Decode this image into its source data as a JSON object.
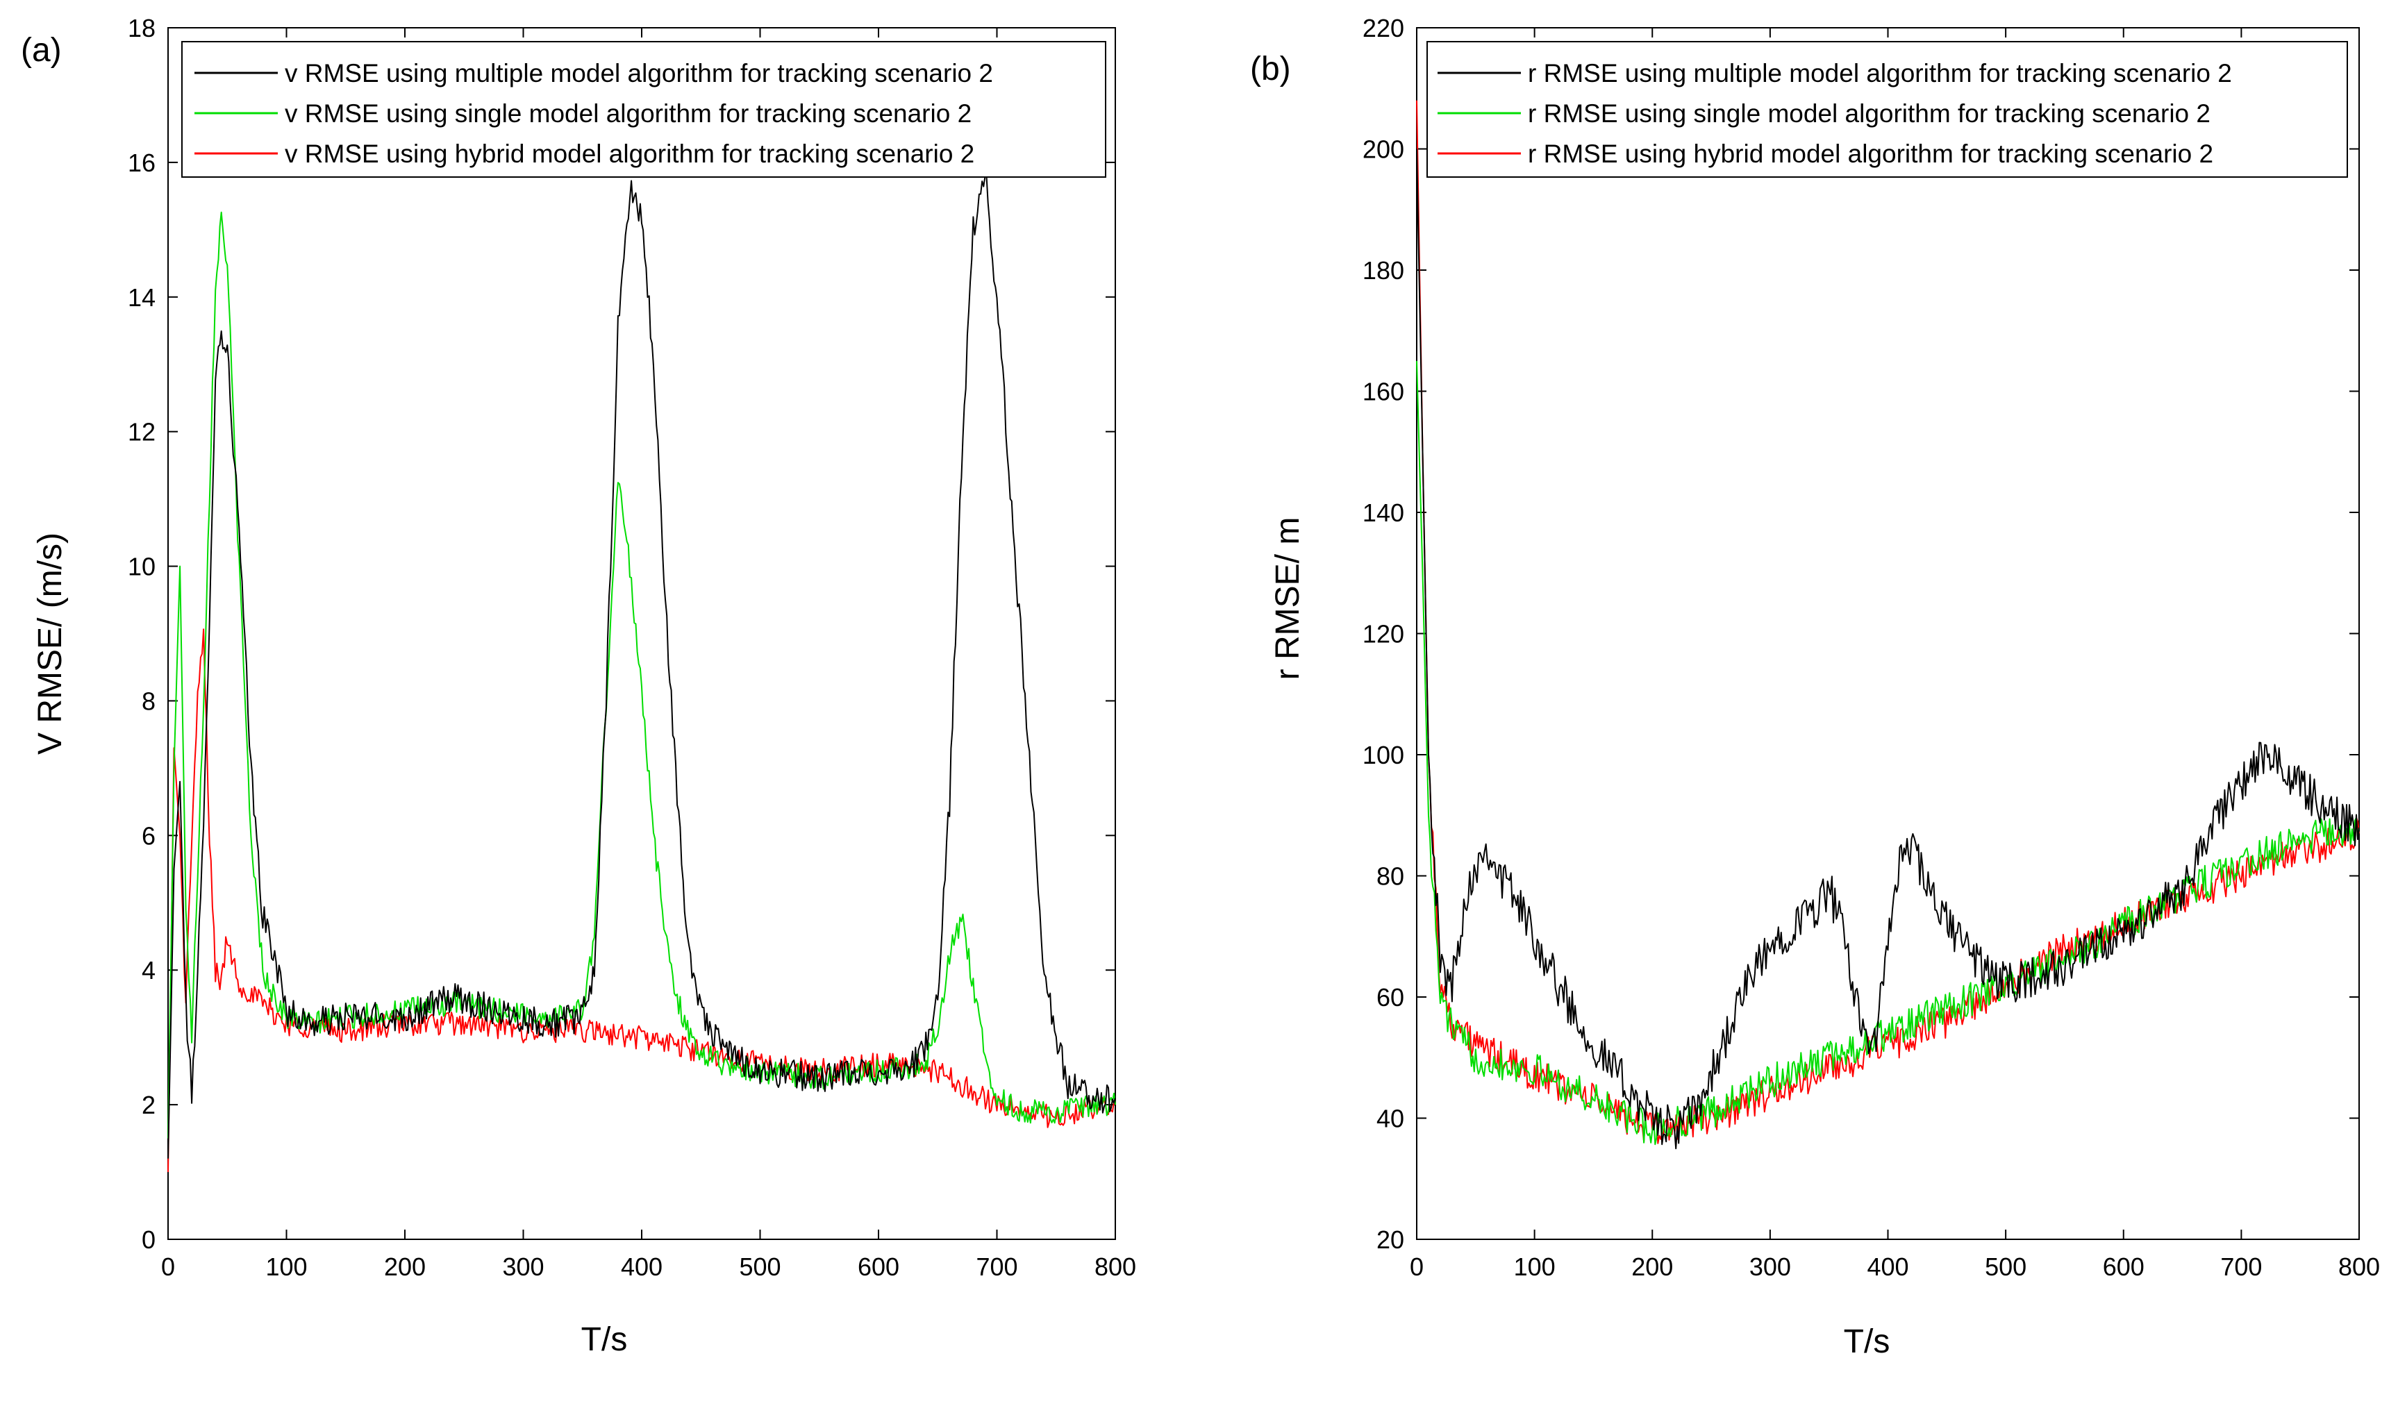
{
  "chart_data": [
    {
      "panel_label": "(a)",
      "type": "line",
      "xlabel": "T/s",
      "ylabel": "V RMSE/ (m/s)",
      "xlim": [
        0,
        800
      ],
      "ylim": [
        0,
        18
      ],
      "xticks": [
        "0",
        "100",
        "200",
        "300",
        "400",
        "500",
        "600",
        "700",
        "800"
      ],
      "yticks": [
        "0",
        "2",
        "4",
        "6",
        "8",
        "10",
        "12",
        "14",
        "16",
        "18"
      ],
      "legend_position": "top",
      "series": [
        {
          "name": "v RMSE using multiple model algorithm for tracking  scenario 2",
          "color": "#000000",
          "x": [
            0,
            5,
            10,
            15,
            20,
            30,
            40,
            45,
            50,
            60,
            70,
            80,
            90,
            100,
            120,
            150,
            200,
            240,
            280,
            320,
            350,
            360,
            370,
            380,
            390,
            400,
            410,
            420,
            430,
            440,
            450,
            460,
            480,
            500,
            550,
            600,
            630,
            640,
            650,
            660,
            670,
            680,
            690,
            700,
            710,
            720,
            730,
            740,
            750,
            760,
            780,
            800
          ],
          "y": [
            1.2,
            5.5,
            6.8,
            3.5,
            2.1,
            6.0,
            12.8,
            13.5,
            13.2,
            10.5,
            7.0,
            4.8,
            4.2,
            3.4,
            3.2,
            3.3,
            3.3,
            3.6,
            3.4,
            3.2,
            3.3,
            4.0,
            8.0,
            13.5,
            15.6,
            15.2,
            13.0,
            9.5,
            6.5,
            4.2,
            3.5,
            3.0,
            2.7,
            2.5,
            2.4,
            2.5,
            2.6,
            2.9,
            3.5,
            6.5,
            11.5,
            15.0,
            15.8,
            14.0,
            11.5,
            9.0,
            6.5,
            4.0,
            3.0,
            2.3,
            2.1,
            2.1
          ]
        },
        {
          "name": "v RMSE using single model algorithm for tracking  scenario 2",
          "color": "#00dd00",
          "x": [
            0,
            5,
            10,
            15,
            20,
            30,
            40,
            45,
            50,
            60,
            70,
            80,
            90,
            100,
            120,
            150,
            200,
            240,
            280,
            320,
            350,
            360,
            370,
            380,
            390,
            400,
            410,
            420,
            430,
            440,
            450,
            470,
            500,
            550,
            600,
            640,
            650,
            660,
            670,
            680,
            690,
            700,
            720,
            750,
            800
          ],
          "y": [
            1.5,
            7.0,
            10.0,
            5.0,
            3.0,
            8.0,
            14.2,
            15.2,
            14.5,
            10.0,
            6.0,
            4.0,
            3.6,
            3.3,
            3.2,
            3.3,
            3.4,
            3.5,
            3.4,
            3.3,
            3.4,
            4.5,
            8.0,
            11.3,
            10.0,
            8.2,
            6.0,
            4.5,
            3.6,
            3.0,
            2.8,
            2.6,
            2.5,
            2.4,
            2.5,
            2.6,
            3.2,
            4.2,
            4.8,
            3.8,
            2.7,
            2.1,
            1.9,
            1.9,
            2.0
          ]
        },
        {
          "name": "v RMSE using hybrid model algorithm for tracking  scenario 2",
          "color": "#ff0000",
          "x": [
            0,
            5,
            10,
            15,
            20,
            25,
            30,
            35,
            40,
            45,
            50,
            60,
            80,
            100,
            150,
            200,
            250,
            300,
            350,
            400,
            450,
            500,
            550,
            600,
            630,
            660,
            700,
            750,
            800
          ],
          "y": [
            1.0,
            7.3,
            6.0,
            3.5,
            6.0,
            8.0,
            9.0,
            6.0,
            4.0,
            3.8,
            4.5,
            3.8,
            3.5,
            3.2,
            3.1,
            3.2,
            3.2,
            3.1,
            3.1,
            3.0,
            2.8,
            2.6,
            2.5,
            2.6,
            2.6,
            2.4,
            2.0,
            1.8,
            2.0
          ]
        }
      ]
    },
    {
      "panel_label": "(b)",
      "type": "line",
      "xlabel": "T/s",
      "ylabel": "r RMSE/ m",
      "xlim": [
        0,
        800
      ],
      "ylim": [
        20,
        220
      ],
      "xticks": [
        "0",
        "100",
        "200",
        "300",
        "400",
        "500",
        "600",
        "700",
        "800"
      ],
      "yticks": [
        "20",
        "40",
        "60",
        "80",
        "100",
        "120",
        "140",
        "160",
        "180",
        "200",
        "220"
      ],
      "legend_position": "top",
      "series": [
        {
          "name": "r RMSE using multiple model algorithm for tracking  scenario 2",
          "color": "#000000",
          "x": [
            0,
            5,
            10,
            20,
            30,
            40,
            50,
            60,
            70,
            80,
            100,
            120,
            150,
            180,
            200,
            220,
            240,
            260,
            280,
            300,
            320,
            340,
            350,
            360,
            370,
            380,
            390,
            400,
            410,
            420,
            440,
            460,
            480,
            500,
            550,
            600,
            650,
            680,
            700,
            720,
            750,
            780,
            800
          ],
          "y": [
            200,
            150,
            100,
            65,
            62,
            75,
            82,
            85,
            80,
            78,
            70,
            62,
            52,
            45,
            40,
            38,
            42,
            52,
            62,
            68,
            72,
            75,
            78,
            72,
            62,
            55,
            52,
            70,
            82,
            85,
            75,
            70,
            65,
            62,
            65,
            70,
            78,
            90,
            95,
            100,
            95,
            90,
            88
          ]
        },
        {
          "name": "r RMSE using single model algorithm for tracking  scenario 2",
          "color": "#00dd00",
          "x": [
            0,
            5,
            10,
            20,
            30,
            50,
            100,
            150,
            200,
            250,
            300,
            350,
            400,
            450,
            500,
            550,
            600,
            650,
            700,
            750,
            800
          ],
          "y": [
            165,
            130,
            90,
            60,
            55,
            50,
            48,
            43,
            38,
            41,
            46,
            50,
            54,
            58,
            62,
            66,
            72,
            77,
            82,
            86,
            88
          ]
        },
        {
          "name": "r RMSE using hybrid model algorithm for tracking  scenario 2",
          "color": "#ff0000",
          "x": [
            0,
            5,
            10,
            20,
            30,
            50,
            100,
            150,
            200,
            250,
            300,
            350,
            400,
            450,
            500,
            550,
            600,
            650,
            700,
            750,
            800
          ],
          "y": [
            208,
            150,
            100,
            62,
            56,
            52,
            47,
            43,
            38,
            40,
            44,
            48,
            52,
            56,
            62,
            68,
            72,
            76,
            80,
            84,
            87
          ]
        }
      ]
    }
  ]
}
